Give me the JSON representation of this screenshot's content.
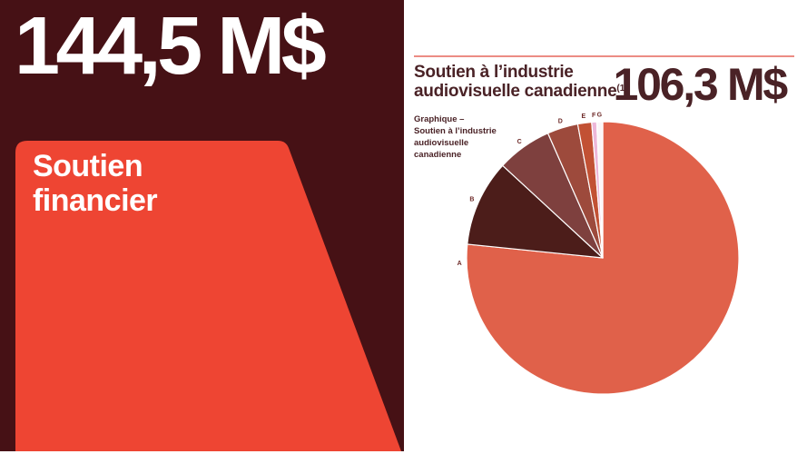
{
  "left_panel": {
    "amount": "144,5 M$",
    "label_line1": "Soutien",
    "label_line2": "financier",
    "bg_color": "#461115",
    "shape_color": "#ee4533",
    "text_color": "#ffffff"
  },
  "right_panel": {
    "title_line1": "Soutien à l’industrie",
    "title_line2": "audiovisuelle canadienne",
    "footnote_marker": "(1)",
    "amount": "106,3 M$",
    "caption_lines": [
      "Graphique –",
      "Soutien à l’industrie",
      "audiovisuelle",
      "canadienne"
    ],
    "accent_line_color": "#ec8c84",
    "text_color": "#4a2226"
  },
  "chart_data": {
    "type": "pie",
    "title": "Graphique – Soutien à l’industrie audiovisuelle canadienne",
    "total_label": "106,3 M$",
    "total_value_millions": 106.3,
    "start_angle_deg": 0,
    "direction": "clockwise",
    "legend_position": "none",
    "slices": [
      {
        "label": "A",
        "percent_est": 76.6,
        "color": "#e0614a",
        "label_angle_deg": 268.0
      },
      {
        "label": "B",
        "percent_est": 10.25,
        "color": "#4c1d1a",
        "label_angle_deg": 294.2
      },
      {
        "label": "C",
        "percent_est": 6.55,
        "color": "#7e403e",
        "label_angle_deg": 324.5
      },
      {
        "label": "D",
        "percent_est": 3.65,
        "color": "#9d4a3c",
        "label_angle_deg": 342.8
      },
      {
        "label": "E",
        "percent_est": 1.65,
        "color": "#c25134",
        "label_angle_deg": 352.3
      },
      {
        "label": "F",
        "percent_est": 0.6,
        "color": "#edb7d8",
        "label_angle_deg": 356.4
      },
      {
        "label": "G",
        "percent_est": 0.7,
        "color": "#fbf6f8",
        "label_angle_deg": 358.7
      }
    ],
    "slice_label_color": "#6e2a28"
  }
}
